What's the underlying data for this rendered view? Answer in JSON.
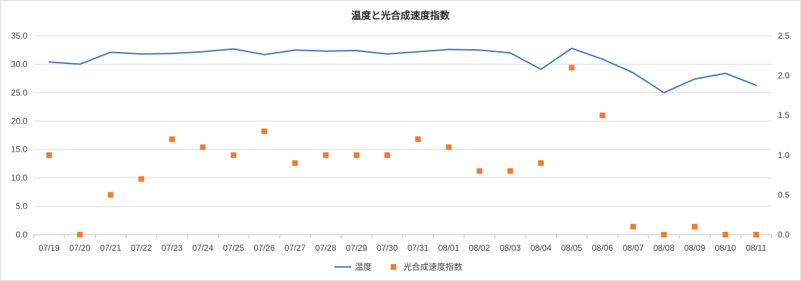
{
  "chart_data": {
    "type": "line",
    "title": "温度と光合成速度指数",
    "categories": [
      "07/19",
      "07/20",
      "07/21",
      "07/22",
      "07/23",
      "07/24",
      "07/25",
      "07/26",
      "07/27",
      "07/28",
      "07/29",
      "07/30",
      "07/31",
      "08/01",
      "08/02",
      "08/03",
      "08/04",
      "08/05",
      "08/06",
      "08/07",
      "08/08",
      "08/09",
      "08/10",
      "08/11"
    ],
    "y_left": {
      "min": 0,
      "max": 35,
      "step": 5,
      "tick_labels": [
        "0.0",
        "5.0",
        "10.0",
        "15.0",
        "20.0",
        "25.0",
        "30.0",
        "35.0"
      ]
    },
    "y_right": {
      "min": 0,
      "max": 2.5,
      "step": 0.5,
      "tick_labels": [
        "0.0",
        "0.5",
        "1.0",
        "1.5",
        "2.0",
        "2.5"
      ]
    },
    "grid": true,
    "legend_position": "bottom",
    "series": [
      {
        "name": "温度",
        "type": "line",
        "axis": "left",
        "color": "#4472C4",
        "values": [
          30.4,
          30.0,
          32.1,
          31.8,
          31.9,
          32.2,
          32.7,
          31.7,
          32.5,
          32.3,
          32.4,
          31.8,
          32.2,
          32.6,
          32.5,
          32.0,
          29.1,
          32.8,
          30.9,
          28.5,
          25.0,
          27.4,
          28.4,
          26.3
        ]
      },
      {
        "name": "光合成速度指数",
        "type": "scatter",
        "axis": "right",
        "color": "#ED7D31",
        "values": [
          1.0,
          0.0,
          0.5,
          0.7,
          1.2,
          1.1,
          1.0,
          1.3,
          0.9,
          1.0,
          1.0,
          1.0,
          1.2,
          1.1,
          0.8,
          0.8,
          0.9,
          2.1,
          1.5,
          0.1,
          0.0,
          0.1,
          0.0,
          0.0
        ]
      }
    ]
  }
}
